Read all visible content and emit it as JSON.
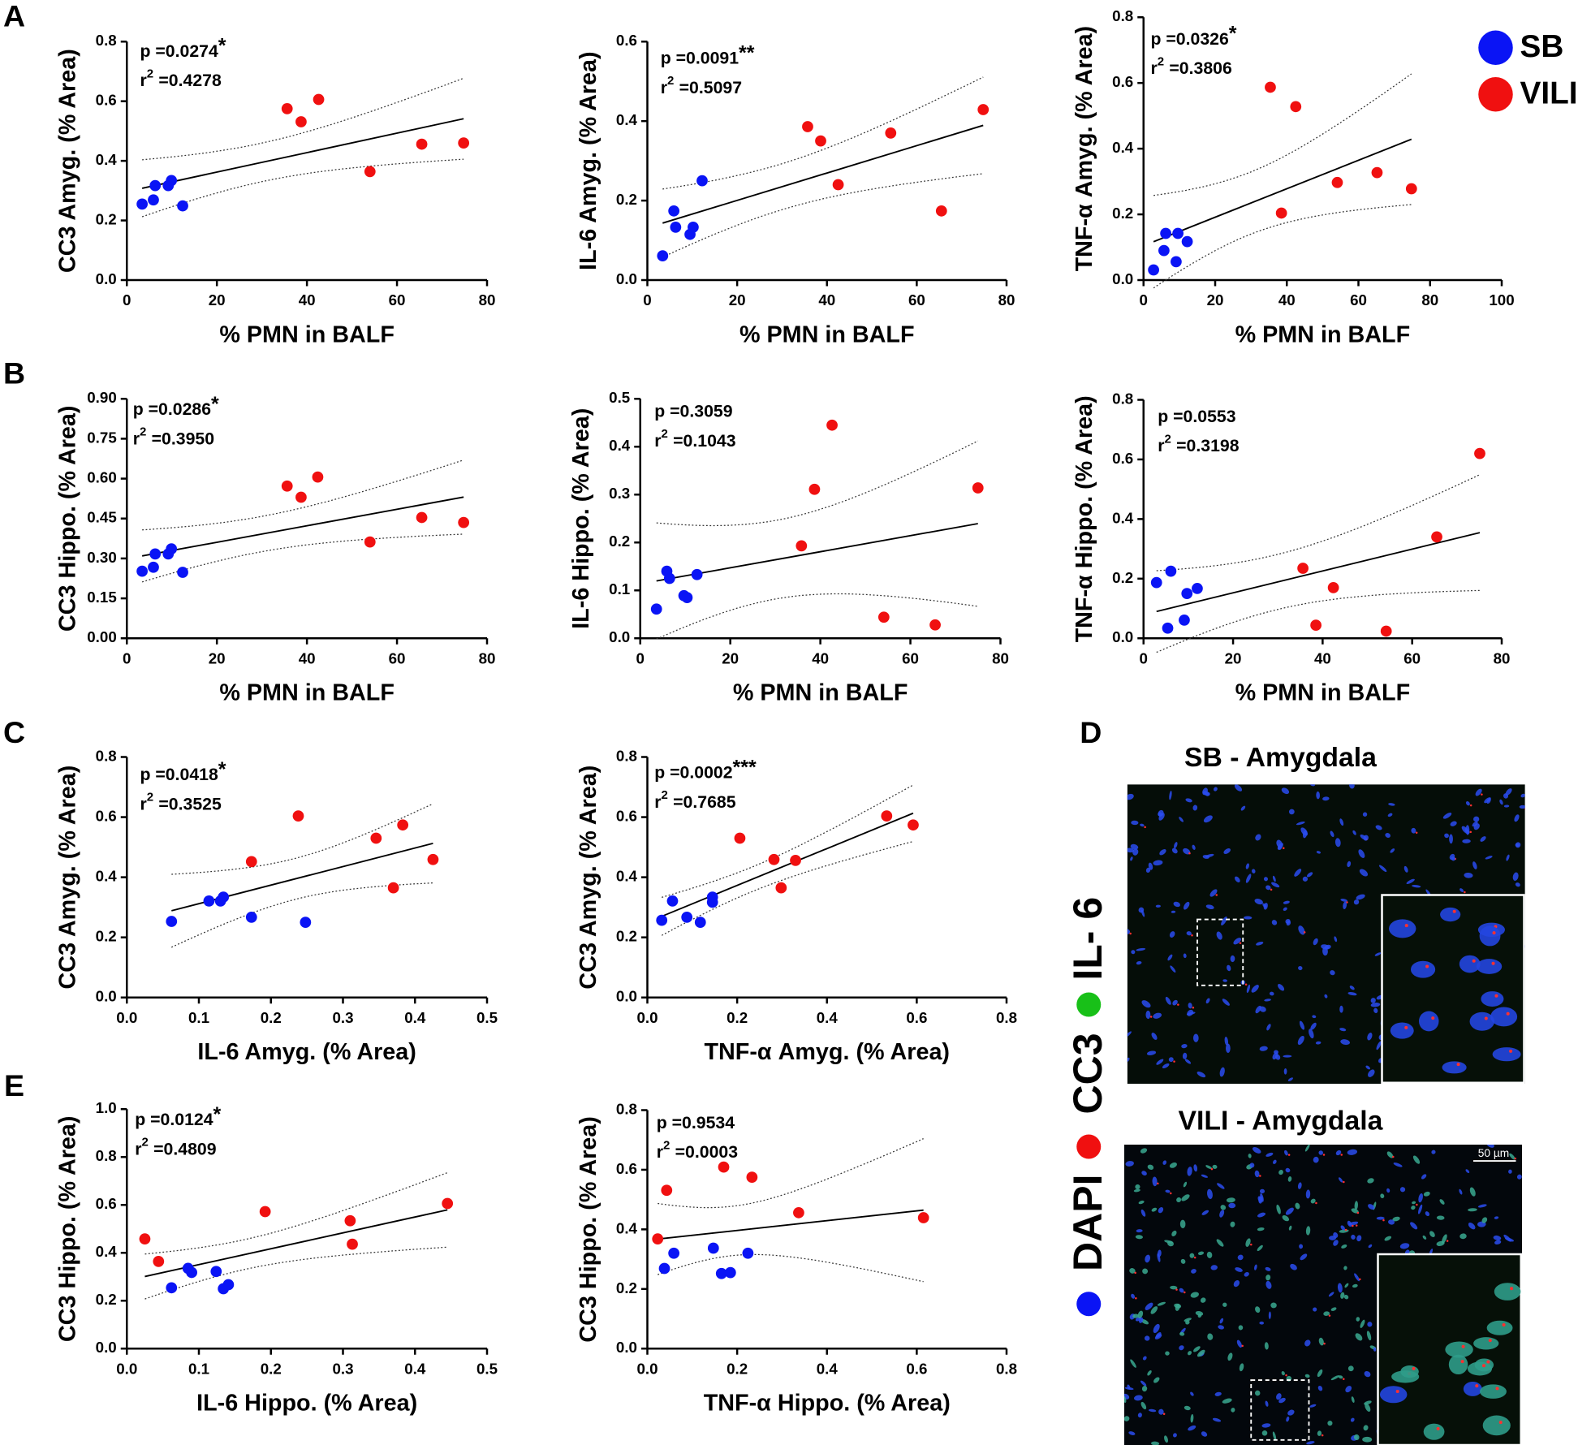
{
  "panel_labels": [
    "A",
    "B",
    "C",
    "D",
    "E"
  ],
  "micrographs": {
    "top_label": "SB - Amygdala",
    "bottom_label": "VILI - Amygdala",
    "scale_bar": "50 µm",
    "stains": [
      {
        "name": "IL- 6",
        "color": "#18c018"
      },
      {
        "name": "CC3",
        "color": "#f01010"
      },
      {
        "name": "DAPI",
        "color": "#0a14f5"
      }
    ]
  },
  "chart_data": [
    {
      "type": "scatter",
      "p_label": "p =0.0274",
      "p_stars": "*",
      "r2_symbol": "r",
      "r2_exp": "2",
      "r2_value": "=0.4278",
      "x_label": "% PMN in BALF",
      "y_label": "CC3 Amyg. (% Area)",
      "xlim": [
        0,
        80
      ],
      "ylim": [
        0,
        0.8
      ],
      "xticks": [
        0,
        20,
        40,
        60,
        80
      ],
      "yticks": [
        {
          "value": 0,
          "label": "0.0"
        },
        0.2,
        0.4,
        0.6,
        0.8
      ],
      "series": [
        {
          "name": "SB",
          "color": "#0a14f5",
          "x": [
            3.4,
            5.9,
            6.3,
            9.2,
            9.9,
            12.4
          ],
          "values": [
            0.255,
            0.269,
            0.317,
            0.317,
            0.334,
            0.249
          ]
        },
        {
          "name": "VILI",
          "color": "#f01010",
          "x": [
            35.6,
            38.7,
            42.6,
            54.0,
            65.5,
            74.8
          ],
          "values": [
            0.575,
            0.531,
            0.606,
            0.364,
            0.456,
            0.46
          ]
        }
      ]
    },
    {
      "type": "scatter",
      "p_label": "p =0.0091",
      "p_stars": "**",
      "r2_symbol": "r",
      "r2_exp": "2",
      "r2_value": "=0.5097",
      "x_label": "% PMN in BALF",
      "y_label": "IL-6 Amyg. (% Area)",
      "xlim": [
        0,
        80
      ],
      "ylim": [
        0,
        0.6
      ],
      "xticks": [
        0,
        20,
        40,
        60,
        80
      ],
      "yticks": [
        {
          "value": 0,
          "label": "0.0"
        },
        0.2,
        0.4,
        0.6
      ],
      "series": [
        {
          "name": "SB",
          "color": "#0a14f5",
          "x": [
            3.4,
            5.9,
            6.3,
            9.5,
            10.2,
            12.2
          ],
          "values": [
            0.061,
            0.174,
            0.133,
            0.115,
            0.133,
            0.25
          ]
        },
        {
          "name": "VILI",
          "color": "#f01010",
          "x": [
            35.7,
            38.6,
            42.5,
            54.2,
            65.5,
            74.8
          ],
          "values": [
            0.386,
            0.35,
            0.24,
            0.37,
            0.174,
            0.429
          ]
        }
      ]
    },
    {
      "type": "scatter",
      "p_label": "p =0.0326",
      "p_stars": "*",
      "r2_symbol": "r",
      "r2_exp": "2",
      "r2_value": "=0.3806",
      "x_label": "% PMN in BALF",
      "y_label": "TNF-α Amyg. (% Area)",
      "xlim": [
        0,
        100
      ],
      "ylim": [
        0,
        0.8
      ],
      "xticks": [
        0,
        20,
        40,
        60,
        80,
        100
      ],
      "yticks": [
        {
          "value": 0,
          "label": "0.0"
        },
        0.2,
        0.4,
        0.6,
        0.8
      ],
      "series": [
        {
          "name": "SB",
          "color": "#0a14f5",
          "x": [
            2.8,
            5.7,
            6.2,
            9.1,
            9.6,
            12.2
          ],
          "values": [
            0.031,
            0.09,
            0.142,
            0.056,
            0.142,
            0.117
          ]
        },
        {
          "name": "VILI",
          "color": "#f01010",
          "x": [
            35.4,
            38.5,
            42.5,
            54.1,
            65.2,
            74.8
          ],
          "values": [
            0.587,
            0.204,
            0.528,
            0.297,
            0.327,
            0.278
          ]
        }
      ]
    },
    {
      "type": "scatter",
      "p_label": "p =0.0286",
      "p_stars": "*",
      "r2_symbol": "r",
      "r2_exp": "2",
      "r2_value": "=0.3950",
      "x_label": "% PMN in BALF",
      "y_label": "CC3 Hippo. (% Area)",
      "xlim": [
        0,
        80
      ],
      "ylim": [
        0,
        0.9
      ],
      "xticks": [
        0,
        20,
        40,
        60,
        80
      ],
      "yticks": [
        {
          "value": 0,
          "label": "0.00"
        },
        0.15,
        {
          "value": 0.3,
          "label": "0.30"
        },
        0.45,
        {
          "value": 0.6,
          "label": "0.60"
        },
        0.75,
        {
          "value": 0.9,
          "label": "0.90"
        }
      ],
      "series": [
        {
          "name": "SB",
          "color": "#0a14f5",
          "x": [
            3.4,
            5.9,
            6.3,
            9.2,
            9.9,
            12.4
          ],
          "values": [
            0.252,
            0.267,
            0.317,
            0.317,
            0.336,
            0.248
          ]
        },
        {
          "name": "VILI",
          "color": "#f01010",
          "x": [
            35.6,
            38.7,
            42.4,
            54.0,
            65.5,
            74.8
          ],
          "values": [
            0.572,
            0.53,
            0.606,
            0.362,
            0.454,
            0.435
          ]
        }
      ]
    },
    {
      "type": "scatter",
      "p_label": "p =0.3059",
      "r2_symbol": "r",
      "r2_exp": "2",
      "r2_value": "=0.1043",
      "x_label": "% PMN in BALF",
      "y_label": "IL-6 Hippo. (% Area)",
      "xlim": [
        0,
        80
      ],
      "ylim": [
        0,
        0.5
      ],
      "xticks": [
        0,
        20,
        40,
        60,
        80
      ],
      "yticks": [
        {
          "value": 0,
          "label": "0.0"
        },
        0.1,
        0.2,
        0.3,
        0.4,
        0.5
      ],
      "series": [
        {
          "name": "SB",
          "color": "#0a14f5",
          "x": [
            3.6,
            5.9,
            6.5,
            9.7,
            10.4,
            12.6
          ],
          "values": [
            0.061,
            0.14,
            0.125,
            0.089,
            0.085,
            0.133
          ]
        },
        {
          "name": "VILI",
          "color": "#f01010",
          "x": [
            35.8,
            38.7,
            42.6,
            54.1,
            65.5,
            75.0
          ],
          "values": [
            0.193,
            0.311,
            0.445,
            0.044,
            0.028,
            0.314
          ]
        }
      ]
    },
    {
      "type": "scatter",
      "p_label": "p =0.0553",
      "r2_symbol": "r",
      "r2_exp": "2",
      "r2_value": "=0.3198",
      "x_label": "% PMN in BALF",
      "y_label": "TNF-α Hippo. (% Area)",
      "xlim": [
        0,
        80
      ],
      "ylim": [
        0,
        0.8
      ],
      "xticks": [
        0,
        20,
        40,
        60,
        80
      ],
      "yticks": [
        {
          "value": 0,
          "label": "0.0"
        },
        0.2,
        0.4,
        0.6,
        0.8
      ],
      "series": [
        {
          "name": "SB",
          "color": "#0a14f5",
          "x": [
            2.9,
            5.4,
            6.1,
            9.1,
            9.7,
            12.0
          ],
          "values": [
            0.187,
            0.034,
            0.225,
            0.061,
            0.15,
            0.167
          ]
        },
        {
          "name": "VILI",
          "color": "#f01010",
          "x": [
            35.6,
            38.5,
            42.4,
            54.2,
            65.5,
            75.1
          ],
          "values": [
            0.235,
            0.044,
            0.17,
            0.024,
            0.34,
            0.62
          ]
        }
      ]
    },
    {
      "type": "scatter",
      "p_label": "p =0.0418",
      "p_stars": "*",
      "r2_symbol": "r",
      "r2_exp": "2",
      "r2_value": "=0.3525",
      "x_label": "IL-6 Amyg. (% Area)",
      "y_label": "CC3 Amyg. (% Area)",
      "xlim": [
        0,
        0.5
      ],
      "ylim": [
        0,
        0.8
      ],
      "xticks": [
        {
          "value": 0,
          "label": "0.0"
        },
        0.1,
        0.2,
        0.3,
        0.4,
        0.5
      ],
      "yticks": [
        {
          "value": 0,
          "label": "0.0"
        },
        0.2,
        0.4,
        0.6,
        0.8
      ],
      "series": [
        {
          "name": "SB",
          "color": "#0a14f5",
          "x": [
            0.062,
            0.114,
            0.13,
            0.134,
            0.173,
            0.248
          ],
          "values": [
            0.253,
            0.321,
            0.321,
            0.334,
            0.267,
            0.25
          ]
        },
        {
          "name": "VILI",
          "color": "#f01010",
          "x": [
            0.173,
            0.238,
            0.346,
            0.383,
            0.37,
            0.425
          ],
          "values": [
            0.452,
            0.604,
            0.53,
            0.574,
            0.365,
            0.459
          ]
        }
      ]
    },
    {
      "type": "scatter",
      "p_label": "p =0.0002",
      "p_stars": "***",
      "r2_symbol": "r",
      "r2_exp": "2",
      "r2_value": "=0.7685",
      "x_label": "TNF-α Amyg. (% Area)",
      "y_label": "CC3 Amyg. (% Area)",
      "xlim": [
        0,
        0.8
      ],
      "ylim": [
        0,
        0.8
      ],
      "xticks": [
        {
          "value": 0,
          "label": "0.0"
        },
        0.2,
        0.4,
        0.6,
        0.8
      ],
      "yticks": [
        {
          "value": 0,
          "label": "0.0"
        },
        0.2,
        0.4,
        0.6,
        0.8
      ],
      "series": [
        {
          "name": "SB",
          "color": "#0a14f5",
          "x": [
            0.032,
            0.056,
            0.088,
            0.118,
            0.145,
            0.145
          ],
          "values": [
            0.257,
            0.321,
            0.267,
            0.25,
            0.334,
            0.317
          ]
        },
        {
          "name": "VILI",
          "color": "#f01010",
          "x": [
            0.206,
            0.282,
            0.298,
            0.33,
            0.533,
            0.592
          ],
          "values": [
            0.53,
            0.459,
            0.365,
            0.456,
            0.604,
            0.574
          ]
        }
      ]
    },
    {
      "type": "scatter",
      "p_label": "p =0.0124",
      "p_stars": "*",
      "r2_symbol": "r",
      "r2_exp": "2",
      "r2_value": "=0.4809",
      "x_label": "IL-6 Hippo. (% Area)",
      "y_label": "CC3 Hippo. (% Area)",
      "xlim": [
        0,
        0.5
      ],
      "ylim": [
        0,
        1
      ],
      "xticks": [
        {
          "value": 0,
          "label": "0.0"
        },
        0.1,
        0.2,
        0.3,
        0.4,
        0.5
      ],
      "yticks": [
        {
          "value": 0,
          "label": "0.0"
        },
        0.2,
        0.4,
        0.6,
        0.8,
        {
          "value": 1,
          "label": "1.0"
        }
      ],
      "series": [
        {
          "name": "SB",
          "color": "#0a14f5",
          "x": [
            0.062,
            0.085,
            0.09,
            0.124,
            0.134,
            0.141
          ],
          "values": [
            0.254,
            0.335,
            0.318,
            0.322,
            0.25,
            0.267
          ]
        },
        {
          "name": "VILI",
          "color": "#f01010",
          "x": [
            0.025,
            0.044,
            0.192,
            0.31,
            0.313,
            0.445
          ],
          "values": [
            0.458,
            0.364,
            0.572,
            0.534,
            0.436,
            0.606
          ]
        }
      ]
    },
    {
      "type": "scatter",
      "p_label": "p =0.9534",
      "r2_symbol": "r",
      "r2_exp": "2",
      "r2_value": "=0.0003",
      "x_label": "TNF-α Hippo. (% Area)",
      "y_label": "CC3 Hippo. (% Area)",
      "xlim": [
        0,
        0.8
      ],
      "ylim": [
        0,
        0.8
      ],
      "xticks": [
        {
          "value": 0,
          "label": "0.0"
        },
        0.2,
        0.4,
        0.6,
        0.8
      ],
      "yticks": [
        {
          "value": 0,
          "label": "0.0"
        },
        0.2,
        0.4,
        0.6,
        0.8
      ],
      "series": [
        {
          "name": "SB",
          "color": "#0a14f5",
          "x": [
            0.038,
            0.059,
            0.147,
            0.165,
            0.185,
            0.224
          ],
          "values": [
            0.269,
            0.32,
            0.337,
            0.252,
            0.255,
            0.32
          ]
        },
        {
          "name": "VILI",
          "color": "#f01010",
          "x": [
            0.023,
            0.043,
            0.17,
            0.233,
            0.337,
            0.615
          ],
          "values": [
            0.368,
            0.531,
            0.609,
            0.575,
            0.456,
            0.439
          ]
        }
      ]
    }
  ]
}
